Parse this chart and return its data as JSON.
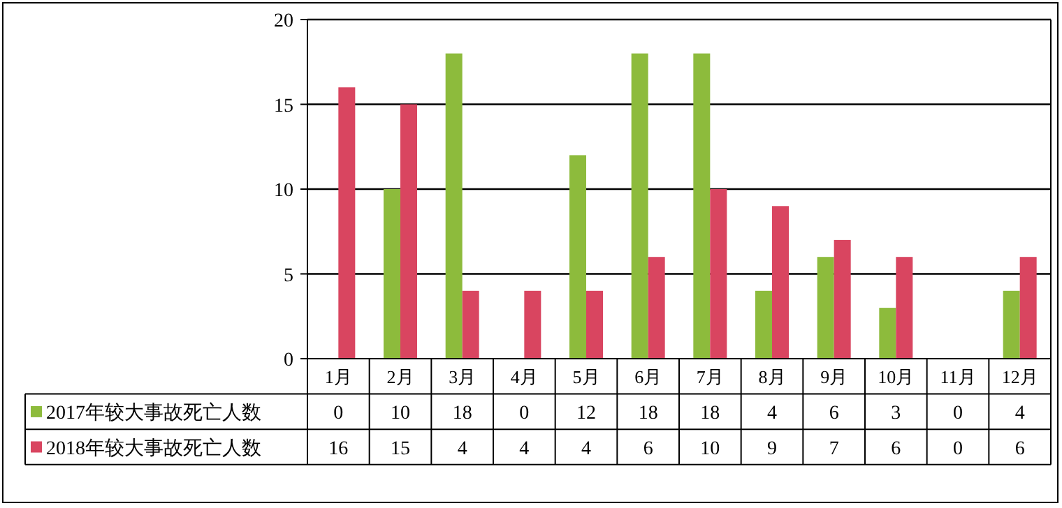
{
  "chart_data": {
    "type": "bar",
    "categories": [
      "1月",
      "2月",
      "3月",
      "4月",
      "5月",
      "6月",
      "7月",
      "8月",
      "9月",
      "10月",
      "11月",
      "12月"
    ],
    "series": [
      {
        "name": "2017年较大事故死亡人数",
        "color": "#8dbb3c",
        "values": [
          0,
          10,
          18,
          0,
          12,
          18,
          18,
          4,
          6,
          3,
          0,
          4
        ]
      },
      {
        "name": "2018年较大事故死亡人数",
        "color": "#d94560",
        "values": [
          16,
          15,
          4,
          4,
          4,
          6,
          10,
          9,
          7,
          6,
          0,
          6
        ]
      }
    ],
    "ylim": [
      0,
      20
    ],
    "yticks": [
      0,
      5,
      10,
      15,
      20
    ],
    "grid": "y",
    "data_labels": true,
    "legend": "bottom"
  }
}
